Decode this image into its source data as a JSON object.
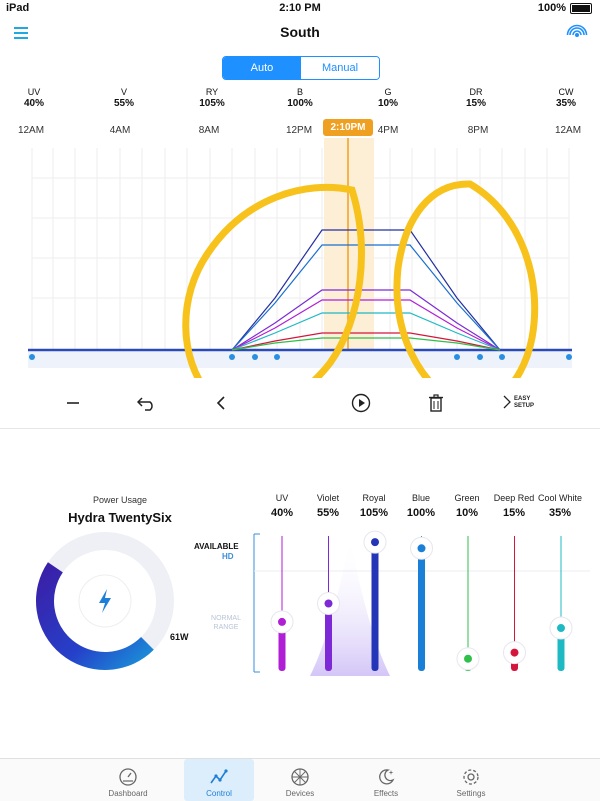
{
  "status": {
    "device": "iPad",
    "time": "2:10 PM",
    "battery": "100%"
  },
  "nav": {
    "title": "South"
  },
  "mode": {
    "auto": "Auto",
    "manual": "Manual",
    "selected": "Auto"
  },
  "channels": [
    {
      "name": "UV",
      "value": "40%"
    },
    {
      "name": "V",
      "value": "55%"
    },
    {
      "name": "RY",
      "value": "105%"
    },
    {
      "name": "B",
      "value": "100%"
    },
    {
      "name": "G",
      "value": "10%"
    },
    {
      "name": "DR",
      "value": "15%"
    },
    {
      "name": "CW",
      "value": "35%"
    }
  ],
  "timeline": {
    "ticks": [
      "12AM",
      "4AM",
      "8AM",
      "12PM",
      "4PM",
      "8PM",
      "12AM"
    ],
    "now": "2:10PM"
  },
  "toolbar": {
    "easy_setup_line1": "EASY",
    "easy_setup_line2": "SETUP"
  },
  "power": {
    "label": "Power Usage",
    "fixture": "Hydra TwentySix",
    "watts": "61W",
    "fraction": 0.47
  },
  "sliders": {
    "available": "AVAILABLE",
    "hd": "HD",
    "normal_line1": "NORMAL",
    "normal_line2": "RANGE",
    "items": [
      {
        "label": "UV",
        "value": "40%",
        "level": 40,
        "color": "#b01fd6"
      },
      {
        "label": "Violet",
        "value": "55%",
        "level": 55,
        "color": "#7d2ad6"
      },
      {
        "label": "Royal",
        "value": "105%",
        "level": 105,
        "color": "#2436b8"
      },
      {
        "label": "Blue",
        "value": "100%",
        "level": 100,
        "color": "#1a7fd6"
      },
      {
        "label": "Green",
        "value": "10%",
        "level": 10,
        "color": "#2fbf4a"
      },
      {
        "label": "Deep Red",
        "value": "15%",
        "level": 15,
        "color": "#d4163c"
      },
      {
        "label": "Cool White",
        "value": "35%",
        "level": 35,
        "color": "#1fb9c4"
      }
    ]
  },
  "tabs": [
    {
      "label": "Dashboard",
      "icon": "dashboard-icon"
    },
    {
      "label": "Control",
      "icon": "control-icon",
      "active": true
    },
    {
      "label": "Devices",
      "icon": "devices-icon"
    },
    {
      "label": "Effects",
      "icon": "effects-icon"
    },
    {
      "label": "Settings",
      "icon": "settings-icon"
    }
  ],
  "colors": {
    "accent": "#1e90ff",
    "now": "#f0a020",
    "annotation": "#f7c21b"
  }
}
